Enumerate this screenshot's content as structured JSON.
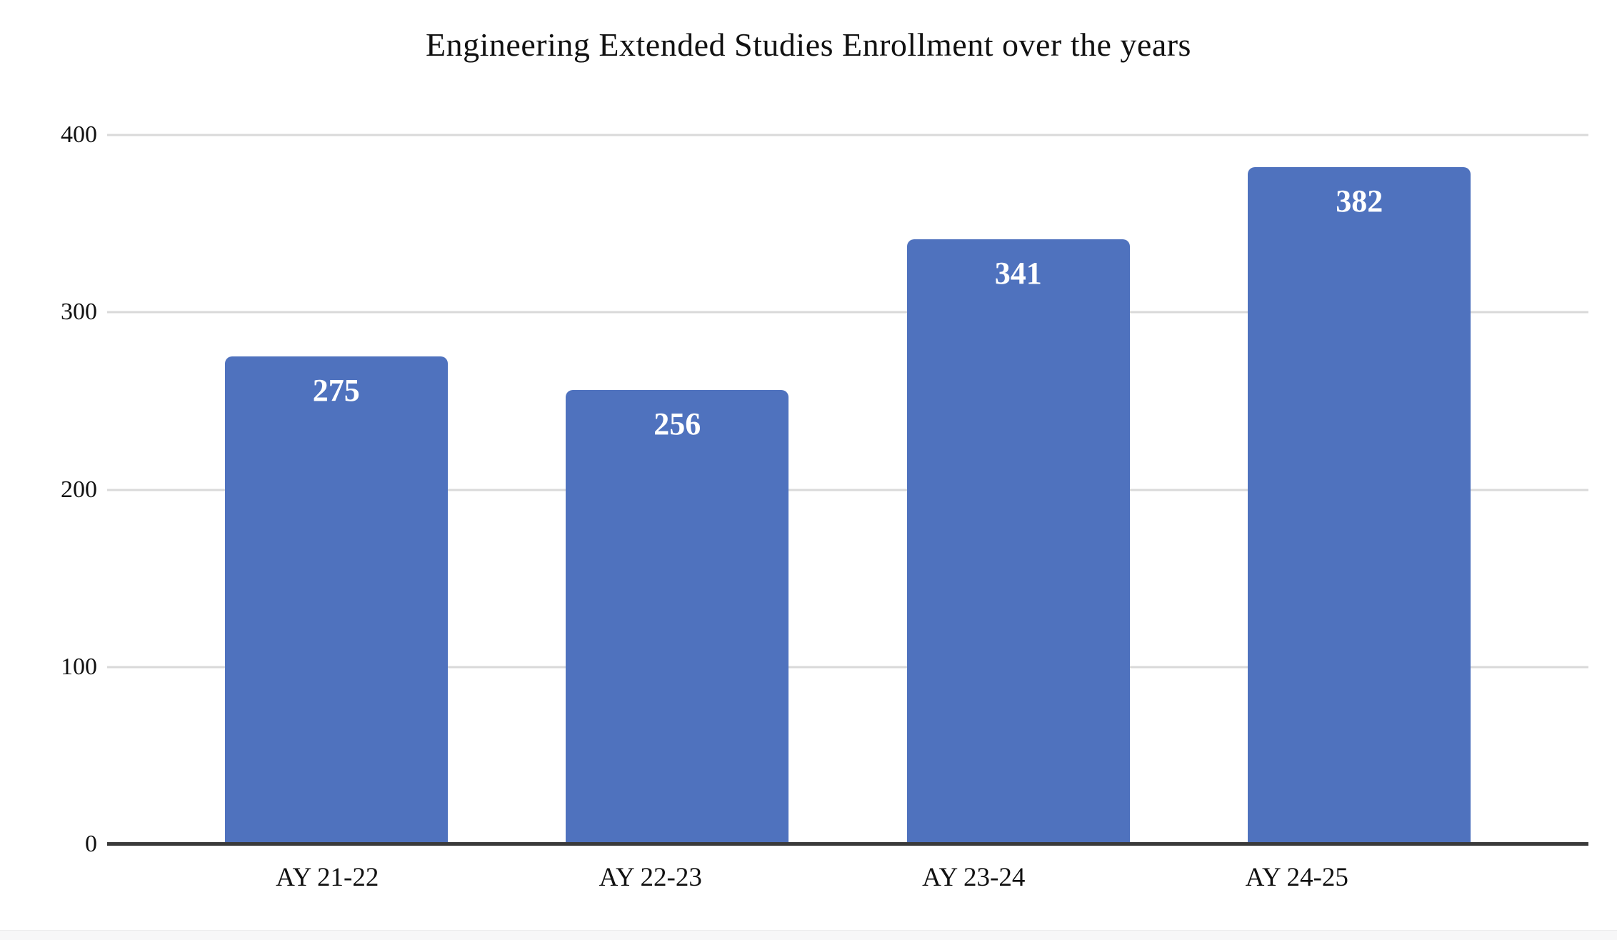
{
  "chart_data": {
    "type": "bar",
    "title": "Engineering Extended Studies Enrollment over the years",
    "categories": [
      "AY 21-22",
      "AY 22-23",
      "AY 23-24",
      "AY 24-25"
    ],
    "values": [
      275,
      256,
      341,
      382
    ],
    "value_labels": [
      "275",
      "256",
      "341",
      "382"
    ],
    "xlabel": "",
    "ylabel": "",
    "ylim": [
      0,
      400
    ],
    "yticks": [
      0,
      100,
      200,
      300,
      400
    ],
    "grid": true,
    "legend_position": "none",
    "colors": {
      "bar_fill": "#4f72be",
      "value_label_text": "#ffffff",
      "gridline": "#d9d9d9",
      "axis_baseline": "#3a3a3a",
      "title_text": "#111111",
      "tick_text": "#111111",
      "background": "#ffffff"
    }
  }
}
